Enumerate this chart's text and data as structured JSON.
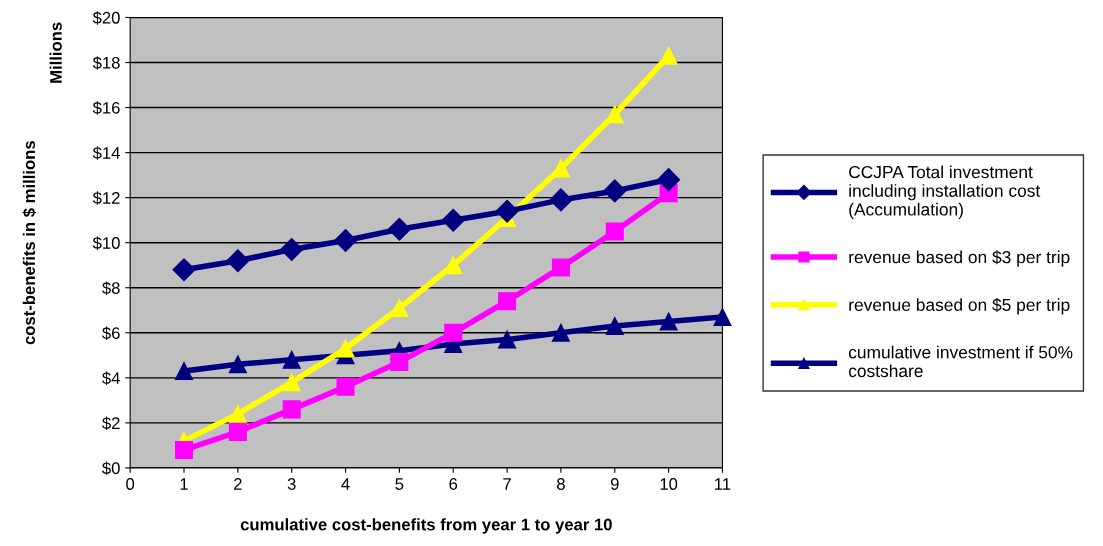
{
  "chart_data": {
    "type": "line",
    "xlabel": "cumulative cost-benefits from year 1 to year 10",
    "ylabel": "cost-benefits in $ millions",
    "annotations": [
      "Millions"
    ],
    "xlim": [
      0,
      11
    ],
    "xticks": [
      0,
      1,
      2,
      3,
      4,
      5,
      6,
      7,
      8,
      9,
      10,
      11
    ],
    "ylim": [
      0,
      20
    ],
    "yticks": [
      {
        "value": 0,
        "label": "$0"
      },
      {
        "value": 2,
        "label": "$2"
      },
      {
        "value": 4,
        "label": "$4"
      },
      {
        "value": 6,
        "label": "$6"
      },
      {
        "value": 8,
        "label": "$8"
      },
      {
        "value": 10,
        "label": "$10"
      },
      {
        "value": 12,
        "label": "$12"
      },
      {
        "value": 14,
        "label": "$14"
      },
      {
        "value": 16,
        "label": "$16"
      },
      {
        "value": 18,
        "label": "$18"
      },
      {
        "value": 20,
        "label": "$20"
      }
    ],
    "grid": "y",
    "legend": "right",
    "series": [
      {
        "name": "CCJPA Total investment\nincluding installation cost\n(Accumulation)",
        "color": "#000080",
        "marker": "diamond",
        "x": [
          1,
          2,
          3,
          4,
          5,
          6,
          7,
          8,
          9,
          10
        ],
        "values": [
          8.8,
          9.2,
          9.7,
          10.1,
          10.6,
          11.0,
          11.4,
          11.9,
          12.3,
          12.8
        ]
      },
      {
        "name": "revenue based on $3 per trip",
        "color": "#ff00ff",
        "marker": "square",
        "x": [
          1,
          2,
          3,
          4,
          5,
          6,
          7,
          8,
          9,
          10
        ],
        "values": [
          0.8,
          1.6,
          2.6,
          3.6,
          4.7,
          6.0,
          7.4,
          8.9,
          10.5,
          12.2
        ]
      },
      {
        "name": "revenue based on $5 per trip",
        "color": "#ffff00",
        "marker": "triangle",
        "x": [
          1,
          2,
          3,
          4,
          5,
          6,
          7,
          8,
          9,
          10
        ],
        "values": [
          1.2,
          2.4,
          3.8,
          5.3,
          7.1,
          9.0,
          11.1,
          13.3,
          15.7,
          18.3
        ]
      },
      {
        "name": "cumulative investment if 50%\ncostshare",
        "color": "#000080",
        "marker": "triangle",
        "x": [
          1,
          2,
          3,
          4,
          5,
          6,
          7,
          8,
          9,
          10,
          11
        ],
        "values": [
          4.3,
          4.6,
          4.8,
          5.0,
          5.2,
          5.5,
          5.7,
          6.0,
          6.3,
          6.5,
          6.7
        ]
      }
    ]
  }
}
